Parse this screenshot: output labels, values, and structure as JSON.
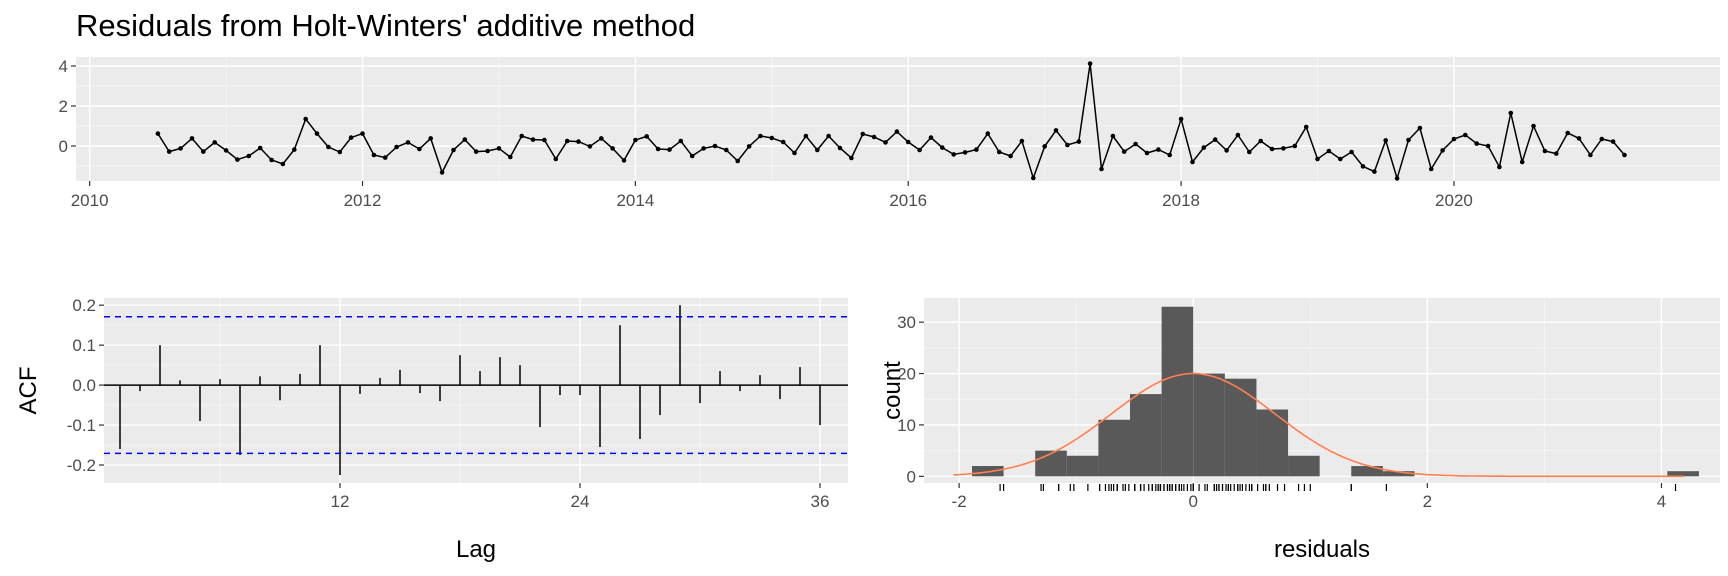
{
  "title": "Residuals from Holt-Winters' additive method",
  "colors": {
    "panel_bg": "#EBEBEB",
    "grid_major": "#FFFFFF",
    "line": "#000000",
    "bar_fill": "#595959",
    "conf_line": "#0000FF",
    "density": "#FF7F50",
    "tick_text": "#4D4D4D"
  },
  "chart_data": [
    {
      "type": "line",
      "name": "residuals-time-series",
      "title": "Residuals from Holt-Winters' additive method",
      "xlabel": "",
      "ylabel": "",
      "xlim": [
        2009.9,
        2021.95
      ],
      "ylim": [
        -1.75,
        4.45
      ],
      "x_ticks": [
        2010,
        2012,
        2014,
        2016,
        2018,
        2020
      ],
      "y_ticks": [
        0,
        2,
        4
      ],
      "start": 2010.5,
      "frequency": 12,
      "points": true,
      "values": [
        0.62,
        -0.28,
        -0.12,
        0.38,
        -0.28,
        0.18,
        -0.22,
        -0.68,
        -0.5,
        -0.1,
        -0.7,
        -0.9,
        -0.18,
        1.35,
        0.62,
        -0.05,
        -0.3,
        0.42,
        0.62,
        -0.45,
        -0.58,
        -0.05,
        0.18,
        -0.15,
        0.38,
        -1.32,
        -0.2,
        0.32,
        -0.28,
        -0.25,
        -0.12,
        -0.55,
        0.5,
        0.32,
        0.3,
        -0.65,
        0.25,
        0.22,
        -0.02,
        0.38,
        -0.12,
        -0.72,
        0.3,
        0.48,
        -0.15,
        -0.18,
        0.25,
        -0.5,
        -0.12,
        0.0,
        -0.2,
        -0.75,
        -0.02,
        0.5,
        0.4,
        0.2,
        -0.35,
        0.5,
        -0.2,
        0.5,
        -0.1,
        -0.6,
        0.6,
        0.45,
        0.18,
        0.72,
        0.2,
        -0.2,
        0.42,
        -0.08,
        -0.42,
        -0.32,
        -0.18,
        0.62,
        -0.3,
        -0.5,
        0.25,
        -1.6,
        -0.02,
        0.78,
        0.05,
        0.22,
        4.12,
        -1.15,
        0.5,
        -0.28,
        0.1,
        -0.35,
        -0.18,
        -0.45,
        1.35,
        -0.8,
        -0.08,
        0.32,
        -0.22,
        0.55,
        -0.3,
        0.25,
        -0.15,
        -0.12,
        0.0,
        0.95,
        -0.65,
        -0.25,
        -0.65,
        -0.3,
        -1.02,
        -1.28,
        0.28,
        -1.62,
        0.3,
        0.9,
        -1.15,
        -0.22,
        0.35,
        0.55,
        0.12,
        0.0,
        -1.05,
        1.65,
        -0.8,
        1.0,
        -0.25,
        -0.38,
        0.65,
        0.38,
        -0.45,
        0.35,
        0.22,
        -0.45
      ]
    },
    {
      "type": "bar",
      "name": "acf",
      "xlabel": "Lag",
      "ylabel": "ACF",
      "xlim": [
        0.2,
        37.4
      ],
      "ylim": [
        -0.245,
        0.218
      ],
      "x_ticks": [
        12,
        24,
        36
      ],
      "y_ticks": [
        -0.2,
        -0.1,
        0.0,
        0.1,
        0.2
      ],
      "y_tick_labels": [
        "-0.2",
        "-0.1",
        "0.0",
        "0.1",
        "0.2"
      ],
      "lags": [
        1,
        2,
        3,
        4,
        5,
        6,
        7,
        8,
        9,
        10,
        11,
        12,
        13,
        14,
        15,
        16,
        17,
        18,
        19,
        20,
        21,
        22,
        23,
        24,
        25,
        26,
        27,
        28,
        29,
        30,
        31,
        32,
        33,
        34,
        35,
        36
      ],
      "values": [
        -0.16,
        -0.015,
        0.1,
        0.012,
        -0.09,
        0.015,
        -0.175,
        0.022,
        -0.038,
        0.028,
        0.1,
        -0.225,
        -0.022,
        0.018,
        0.038,
        -0.02,
        -0.04,
        0.075,
        0.035,
        0.07,
        0.05,
        -0.105,
        -0.025,
        -0.025,
        -0.155,
        0.15,
        -0.135,
        -0.075,
        0.2,
        -0.045,
        0.035,
        -0.015,
        0.025,
        -0.035,
        0.045,
        -0.1
      ],
      "confidence_bounds": [
        0.171,
        -0.171
      ]
    },
    {
      "type": "histogram",
      "name": "residual-histogram",
      "xlabel": "residuals",
      "ylabel": "count",
      "xlim": [
        -2.3,
        4.5
      ],
      "ylim": [
        -1.3,
        34.7
      ],
      "x_ticks": [
        -2,
        0,
        2,
        4
      ],
      "y_ticks": [
        0,
        10,
        20,
        30
      ],
      "bin_width": 0.27,
      "bins": [
        {
          "x0": -1.89,
          "x1": -1.62,
          "count": 2
        },
        {
          "x0": -1.62,
          "x1": -1.35,
          "count": 0
        },
        {
          "x0": -1.35,
          "x1": -1.08,
          "count": 5
        },
        {
          "x0": -1.08,
          "x1": -0.81,
          "count": 4
        },
        {
          "x0": -0.81,
          "x1": -0.54,
          "count": 11
        },
        {
          "x0": -0.54,
          "x1": -0.27,
          "count": 16
        },
        {
          "x0": -0.27,
          "x1": 0.0,
          "count": 33
        },
        {
          "x0": 0.0,
          "x1": 0.27,
          "count": 20
        },
        {
          "x0": 0.27,
          "x1": 0.54,
          "count": 19
        },
        {
          "x0": 0.54,
          "x1": 0.81,
          "count": 13
        },
        {
          "x0": 0.81,
          "x1": 1.08,
          "count": 4
        },
        {
          "x0": 1.08,
          "x1": 1.35,
          "count": 0
        },
        {
          "x0": 1.35,
          "x1": 1.62,
          "count": 2
        },
        {
          "x0": 1.62,
          "x1": 1.89,
          "count": 1
        },
        {
          "x0": 4.05,
          "x1": 4.32,
          "count": 1
        }
      ],
      "density": {
        "mean": 0.0,
        "sd": 0.7,
        "n": 130,
        "x_range": [
          -2.05,
          4.2
        ]
      },
      "rug": [
        -1.65,
        -1.62,
        -1.3,
        -1.28,
        -1.15,
        -1.15,
        -1.05,
        -1.02,
        -0.9,
        -0.8,
        -0.8,
        -0.75,
        -0.72,
        -0.7,
        -0.68,
        -0.65,
        -0.65,
        -0.65,
        -0.6,
        -0.58,
        -0.55,
        -0.5,
        -0.5,
        -0.5,
        -0.45,
        -0.45,
        -0.45,
        -0.42,
        -0.38,
        -0.35,
        -0.35,
        -0.32,
        -0.3,
        -0.3,
        -0.28,
        -0.28,
        -0.28,
        -0.25,
        -0.25,
        -0.22,
        -0.22,
        -0.2,
        -0.2,
        -0.18,
        -0.18,
        -0.15,
        -0.15,
        -0.12,
        -0.12,
        -0.1,
        -0.08,
        -0.05,
        -0.02,
        0.0,
        0.0,
        0.05,
        0.1,
        0.12,
        0.18,
        0.18,
        0.2,
        0.22,
        0.22,
        0.25,
        0.25,
        0.28,
        0.3,
        0.3,
        0.32,
        0.35,
        0.38,
        0.38,
        0.4,
        0.42,
        0.45,
        0.48,
        0.5,
        0.5,
        0.5,
        0.55,
        0.6,
        0.62,
        0.62,
        0.65,
        0.72,
        0.78,
        0.9,
        0.95,
        1.0,
        1.35,
        1.35,
        1.65,
        4.12
      ]
    }
  ]
}
